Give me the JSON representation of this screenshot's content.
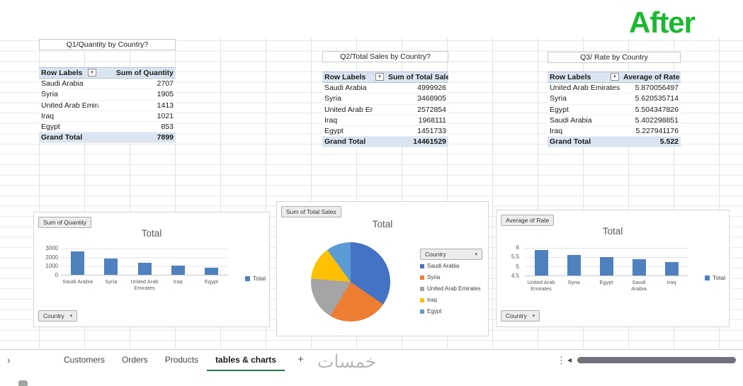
{
  "after_label": "After",
  "watermark": "خمسات",
  "icons": {
    "sheet_nav": "›",
    "more": "⋮",
    "scroll_left": "◀",
    "filter_dropdown": "▾",
    "dropdown": "▾"
  },
  "colors": {
    "after_green": "#1db832",
    "active_tab_underline": "#217346",
    "pivot_header_fill": "#dbe5f1",
    "bar_blue": "#4e81bd"
  },
  "tables": [
    {
      "title": "Q1/Quantity by Country?",
      "headers": [
        "Row Labels",
        "Sum of Quantity"
      ],
      "rows": [
        {
          "label": "Saudi Arabia",
          "value": "2707"
        },
        {
          "label": "Syria",
          "value": "1905"
        },
        {
          "label": "United Arab Emira",
          "value": "1413"
        },
        {
          "label": "Iraq",
          "value": "1021"
        },
        {
          "label": "Egypt",
          "value": "853"
        }
      ],
      "grand_total": {
        "label": "Grand Total",
        "value": "7899"
      }
    },
    {
      "title": "Q2/Total Sales by Country?",
      "headers": [
        "Row Labels",
        "Sum of Total Sales"
      ],
      "rows": [
        {
          "label": "Saudi Arabia",
          "value": "4999926"
        },
        {
          "label": "Syria",
          "value": "3468905"
        },
        {
          "label": "United Arab Er",
          "value": "2572854"
        },
        {
          "label": "Iraq",
          "value": "1968111"
        },
        {
          "label": "Egypt",
          "value": "1451733"
        }
      ],
      "grand_total": {
        "label": "Grand Total",
        "value": "14461529"
      }
    },
    {
      "title": "Q3/ Rate by Country",
      "headers": [
        "Row Labels",
        "Average of Rate"
      ],
      "rows": [
        {
          "label": "United Arab Emirates",
          "value": "5.870056497"
        },
        {
          "label": "Syria",
          "value": "5.620535714"
        },
        {
          "label": "Egypt",
          "value": "5.504347826"
        },
        {
          "label": "Saudi Arabia",
          "value": "5.402298851"
        },
        {
          "label": "Iraq",
          "value": "5.227941176"
        }
      ],
      "grand_total": {
        "label": "Grand Total",
        "value": "5.522"
      }
    }
  ],
  "chart_data": [
    {
      "type": "bar",
      "title": "Total",
      "field_button": "Sum of Quantity",
      "axis_button": "Country",
      "legend": [
        "Total"
      ],
      "categories": [
        "Saudi Arabia",
        "Syria",
        "United Arab Emirates",
        "Iraq",
        "Egypt"
      ],
      "values": [
        2707,
        1905,
        1413,
        1021,
        853
      ],
      "ylim": [
        0,
        3000
      ],
      "yticks": [
        3000,
        2000,
        1000,
        0
      ],
      "bar_color": "#4e81bd",
      "grid": true,
      "legend_position": "right"
    },
    {
      "type": "pie",
      "title": "Total",
      "field_button": "Sum of Total Sales",
      "legend_header": "Country",
      "categories": [
        "Saudi Arabia",
        "Syria",
        "United Arab Emirates",
        "Iraq",
        "Egypt"
      ],
      "values": [
        4999926,
        3468905,
        2572854,
        1968111,
        1451733
      ],
      "colors": [
        "#4472c4",
        "#ed7d31",
        "#a5a5a5",
        "#ffc000",
        "#5b9bd5"
      ],
      "legend_position": "right"
    },
    {
      "type": "bar",
      "title": "Total",
      "field_button": "Average of Rate",
      "axis_button": "Country",
      "legend": [
        "Total"
      ],
      "categories": [
        "United Arab Emirates",
        "Syria",
        "Egypt",
        "Saudi Arabia",
        "Iraq"
      ],
      "values": [
        5.870056497,
        5.620535714,
        5.504347826,
        5.402298851,
        5.227941176
      ],
      "ylim": [
        4.5,
        6
      ],
      "yticks": [
        6,
        5.5,
        5,
        4.5
      ],
      "bar_color": "#4e81bd",
      "grid": true,
      "legend_position": "right"
    }
  ],
  "sheet_bar": {
    "tabs": [
      "Customers",
      "Orders",
      "Products",
      "tables & charts"
    ],
    "active_tab": "tables & charts",
    "add_button": "+"
  }
}
